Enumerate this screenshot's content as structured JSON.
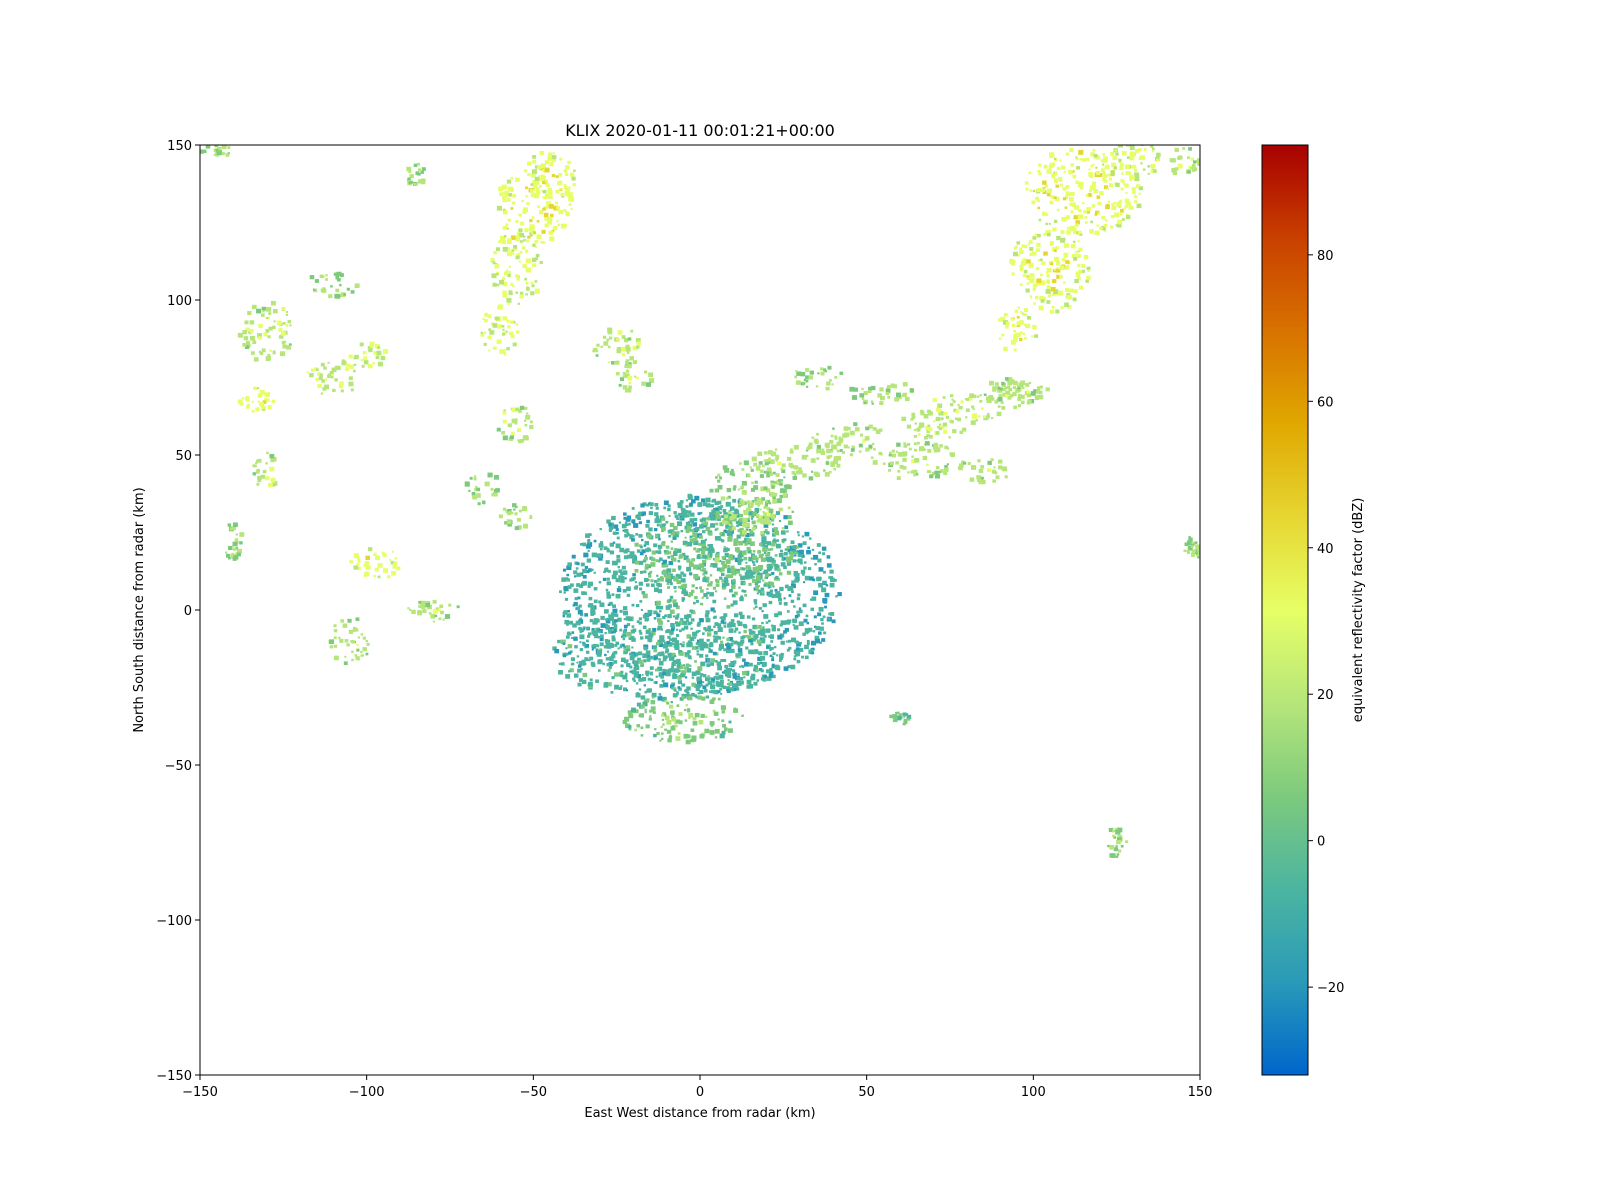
{
  "chart_data": {
    "type": "heatmap",
    "title": "KLIX 2020-01-11 00:01:21+00:00",
    "xlabel": "East West distance from radar (km)",
    "ylabel": "North South distance from radar (km)",
    "xlim": [
      -150,
      150
    ],
    "ylim": [
      -150,
      150
    ],
    "xticks": [
      -150,
      -100,
      -50,
      0,
      50,
      100,
      150
    ],
    "yticks": [
      -150,
      -100,
      -50,
      0,
      50,
      100,
      150
    ],
    "xtick_labels": [
      "−150",
      "−100",
      "−50",
      "0",
      "50",
      "100",
      "150"
    ],
    "ytick_labels": [
      "−150",
      "−100",
      "−50",
      "0",
      "50",
      "100",
      "150"
    ],
    "grid": false,
    "radar_location": [
      0,
      0
    ],
    "colorbar": {
      "label": "equivalent reflectivity factor (dBZ)",
      "range": [
        -32,
        95
      ],
      "ticks": [
        -20,
        0,
        20,
        40,
        60,
        80
      ],
      "tick_labels": [
        "−20",
        "0",
        "20",
        "40",
        "60",
        "80"
      ],
      "colors": [
        "#0066cc",
        "#2a9ab8",
        "#4cb5a0",
        "#7dca7d",
        "#b6e67a",
        "#e6ff66",
        "#e6d632",
        "#e0a800",
        "#d87200",
        "#c84000",
        "#a80000"
      ]
    },
    "echoes": [
      {
        "x": 0,
        "y": 5,
        "rx": 42,
        "ry": 32,
        "dbz": -10
      },
      {
        "x": 5,
        "y": 18,
        "rx": 25,
        "ry": 15,
        "dbz": 0
      },
      {
        "x": -10,
        "y": -15,
        "rx": 35,
        "ry": 14,
        "dbz": -8
      },
      {
        "x": -5,
        "y": -35,
        "rx": 18,
        "ry": 8,
        "dbz": 5
      },
      {
        "x": 15,
        "y": 40,
        "rx": 12,
        "ry": 8,
        "dbz": 8
      },
      {
        "x": 18,
        "y": 30,
        "rx": 12,
        "ry": 6,
        "dbz": 15
      },
      {
        "x": 30,
        "y": 48,
        "rx": 14,
        "ry": 6,
        "dbz": 15
      },
      {
        "x": 45,
        "y": 55,
        "rx": 12,
        "ry": 5,
        "dbz": 15
      },
      {
        "x": 65,
        "y": 48,
        "rx": 14,
        "ry": 6,
        "dbz": 15
      },
      {
        "x": 80,
        "y": 65,
        "rx": 12,
        "ry": 5,
        "dbz": 18
      },
      {
        "x": 95,
        "y": 70,
        "rx": 10,
        "ry": 5,
        "dbz": 15
      },
      {
        "x": 55,
        "y": 70,
        "rx": 10,
        "ry": 4,
        "dbz": 12
      },
      {
        "x": 35,
        "y": 75,
        "rx": 8,
        "ry": 4,
        "dbz": 10
      },
      {
        "x": 70,
        "y": 60,
        "rx": 10,
        "ry": 5,
        "dbz": 18
      },
      {
        "x": 85,
        "y": 45,
        "rx": 8,
        "ry": 4,
        "dbz": 15
      },
      {
        "x": -50,
        "y": 130,
        "rx": 12,
        "ry": 12,
        "dbz": 30
      },
      {
        "x": -55,
        "y": 110,
        "rx": 8,
        "ry": 12,
        "dbz": 25
      },
      {
        "x": -60,
        "y": 90,
        "rx": 6,
        "ry": 8,
        "dbz": 25
      },
      {
        "x": -45,
        "y": 140,
        "rx": 8,
        "ry": 8,
        "dbz": 28
      },
      {
        "x": -25,
        "y": 85,
        "rx": 8,
        "ry": 6,
        "dbz": 18
      },
      {
        "x": -20,
        "y": 75,
        "rx": 6,
        "ry": 5,
        "dbz": 15
      },
      {
        "x": -55,
        "y": 60,
        "rx": 6,
        "ry": 6,
        "dbz": 18
      },
      {
        "x": -65,
        "y": 40,
        "rx": 5,
        "ry": 6,
        "dbz": 15
      },
      {
        "x": -55,
        "y": 30,
        "rx": 5,
        "ry": 4,
        "dbz": 12
      },
      {
        "x": 115,
        "y": 135,
        "rx": 18,
        "ry": 14,
        "dbz": 30
      },
      {
        "x": 105,
        "y": 110,
        "rx": 12,
        "ry": 14,
        "dbz": 28
      },
      {
        "x": 95,
        "y": 90,
        "rx": 6,
        "ry": 8,
        "dbz": 30
      },
      {
        "x": 130,
        "y": 145,
        "rx": 10,
        "ry": 6,
        "dbz": 25
      },
      {
        "x": 95,
        "y": 70,
        "rx": 8,
        "ry": 4,
        "dbz": 15
      },
      {
        "x": -130,
        "y": 90,
        "rx": 8,
        "ry": 10,
        "dbz": 18
      },
      {
        "x": -133,
        "y": 67,
        "rx": 5,
        "ry": 5,
        "dbz": 28
      },
      {
        "x": -110,
        "y": 75,
        "rx": 8,
        "ry": 6,
        "dbz": 20
      },
      {
        "x": -100,
        "y": 82,
        "rx": 6,
        "ry": 4,
        "dbz": 22
      },
      {
        "x": -97,
        "y": 15,
        "rx": 8,
        "ry": 5,
        "dbz": 28
      },
      {
        "x": -130,
        "y": 45,
        "rx": 4,
        "ry": 6,
        "dbz": 18
      },
      {
        "x": -105,
        "y": -10,
        "rx": 6,
        "ry": 8,
        "dbz": 15
      },
      {
        "x": -110,
        "y": 105,
        "rx": 8,
        "ry": 4,
        "dbz": 12
      },
      {
        "x": -140,
        "y": 22,
        "rx": 3,
        "ry": 6,
        "dbz": 12
      },
      {
        "x": -85,
        "y": 140,
        "rx": 3,
        "ry": 4,
        "dbz": 12
      },
      {
        "x": 125,
        "y": -75,
        "rx": 3,
        "ry": 5,
        "dbz": 10
      },
      {
        "x": 60,
        "y": -35,
        "rx": 3,
        "ry": 2,
        "dbz": 0
      },
      {
        "x": 148,
        "y": 20,
        "rx": 3,
        "ry": 4,
        "dbz": 10
      },
      {
        "x": -145,
        "y": 148,
        "rx": 5,
        "ry": 2,
        "dbz": 12
      },
      {
        "x": 145,
        "y": 145,
        "rx": 5,
        "ry": 5,
        "dbz": 18
      },
      {
        "x": -80,
        "y": 0,
        "rx": 8,
        "ry": 4,
        "dbz": 15
      }
    ]
  }
}
